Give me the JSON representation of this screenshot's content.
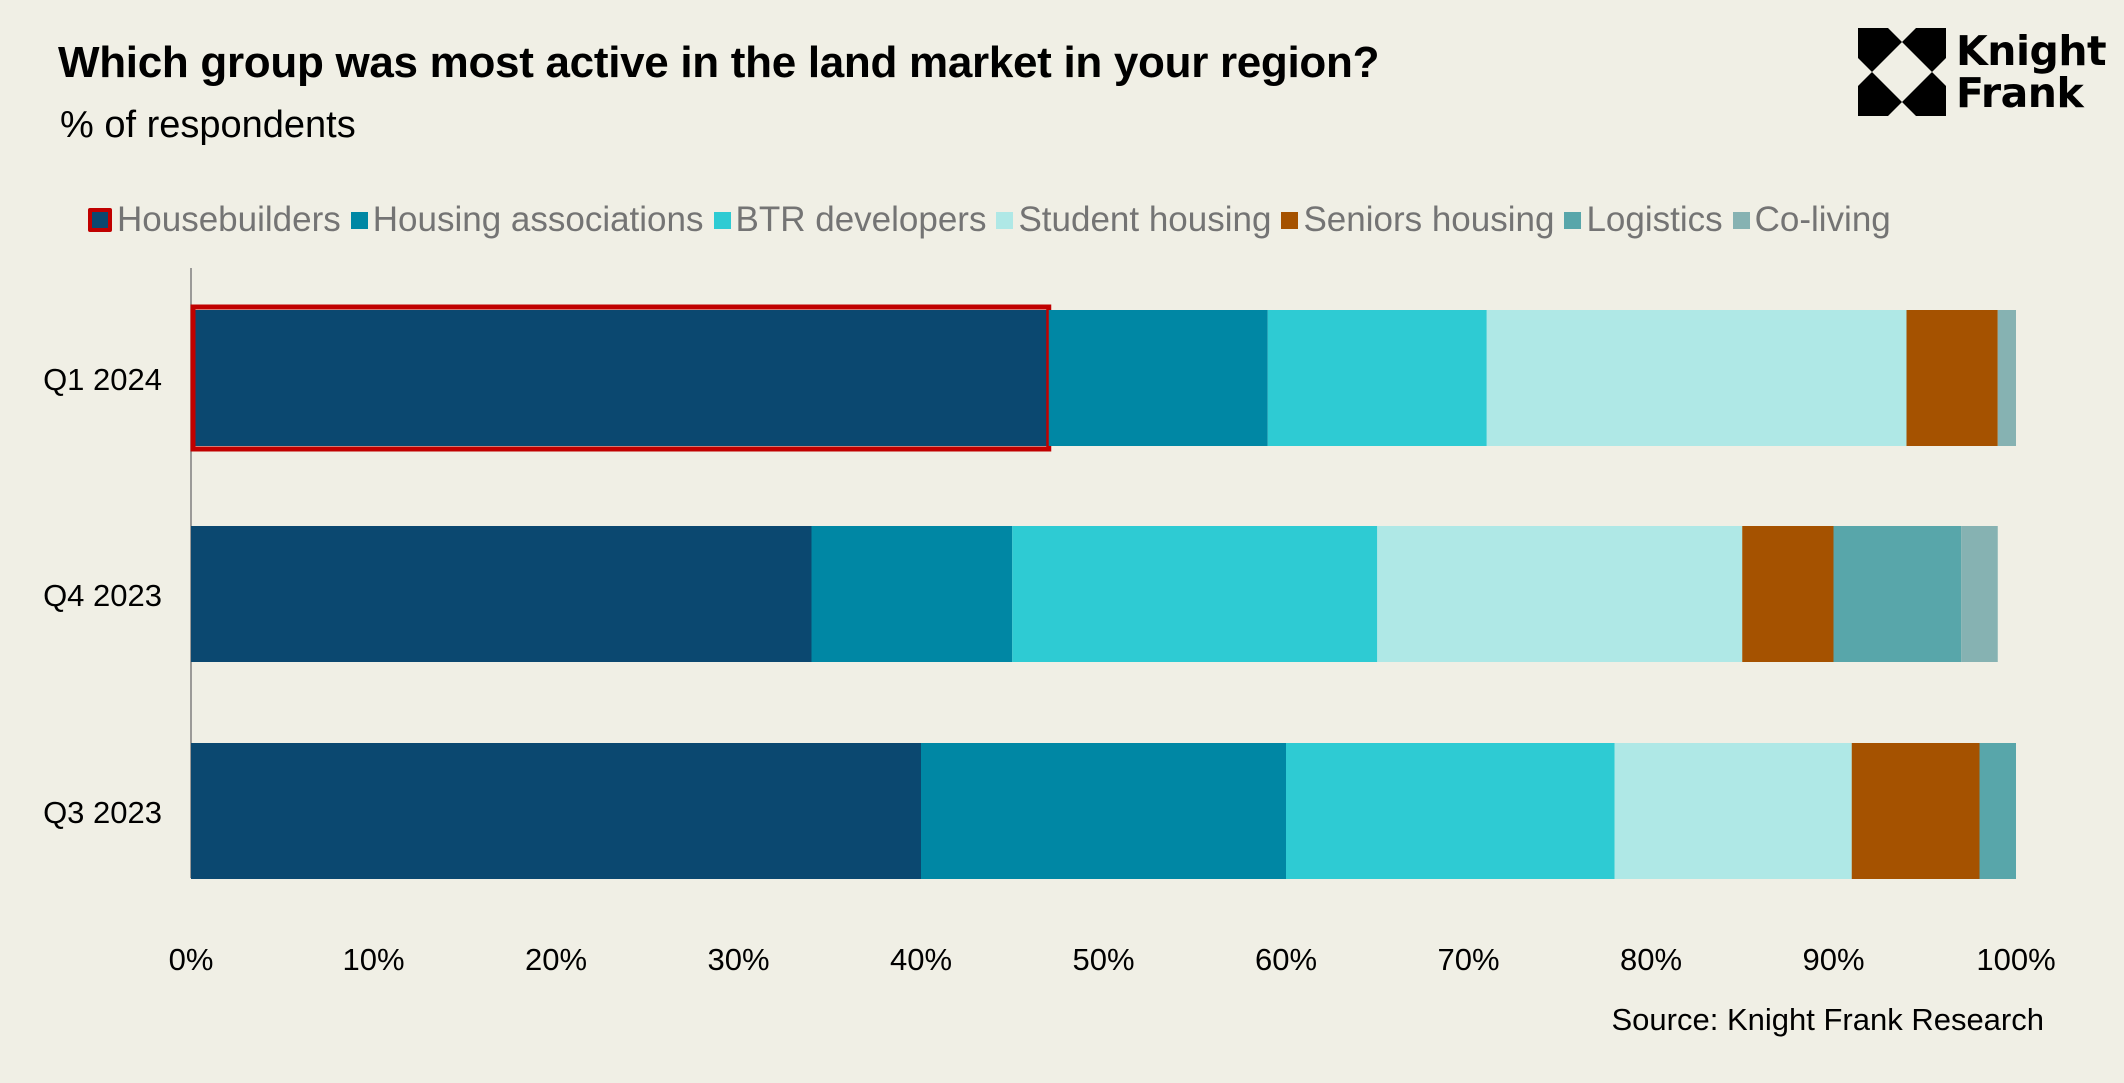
{
  "chart_data": {
    "type": "bar",
    "orientation": "horizontal",
    "stacked": true,
    "title": "Which group was most active in the land market in your region?",
    "subtitle": "% of respondents",
    "xlabel": "",
    "ylabel": "",
    "xlim": [
      0,
      100
    ],
    "x_ticks": [
      "0%",
      "10%",
      "20%",
      "30%",
      "40%",
      "50%",
      "60%",
      "70%",
      "80%",
      "90%",
      "100%"
    ],
    "x_tick_values": [
      0,
      10,
      20,
      30,
      40,
      50,
      60,
      70,
      80,
      90,
      100
    ],
    "grid": false,
    "legend_position": "top",
    "categories": [
      "Q1 2024",
      "Q4 2023",
      "Q3 2023"
    ],
    "series": [
      {
        "name": "Housebuilders",
        "color": "#0b4870",
        "values": [
          47,
          34,
          40
        ],
        "highlighted": true
      },
      {
        "name": "Housing associations",
        "color": "#0087a4",
        "values": [
          12,
          11,
          20
        ]
      },
      {
        "name": "BTR developers",
        "color": "#2ecbd3",
        "values": [
          12,
          20,
          18
        ]
      },
      {
        "name": "Student housing",
        "color": "#afe8e6",
        "values": [
          23,
          20,
          13
        ]
      },
      {
        "name": "Seniors housing",
        "color": "#a55200",
        "values": [
          5,
          5,
          7
        ]
      },
      {
        "name": "Logistics",
        "color": "#58a6aa",
        "values": [
          0,
          7,
          2
        ]
      },
      {
        "name": "Co-living",
        "color": "#86b2b2",
        "values": [
          1,
          2,
          0
        ]
      }
    ],
    "highlight_color": "#c00000",
    "source": "Source: Knight Frank Research"
  },
  "logo": {
    "line1": "Knight",
    "line2": "Frank",
    "icon": "knight-frank-logo-icon"
  }
}
